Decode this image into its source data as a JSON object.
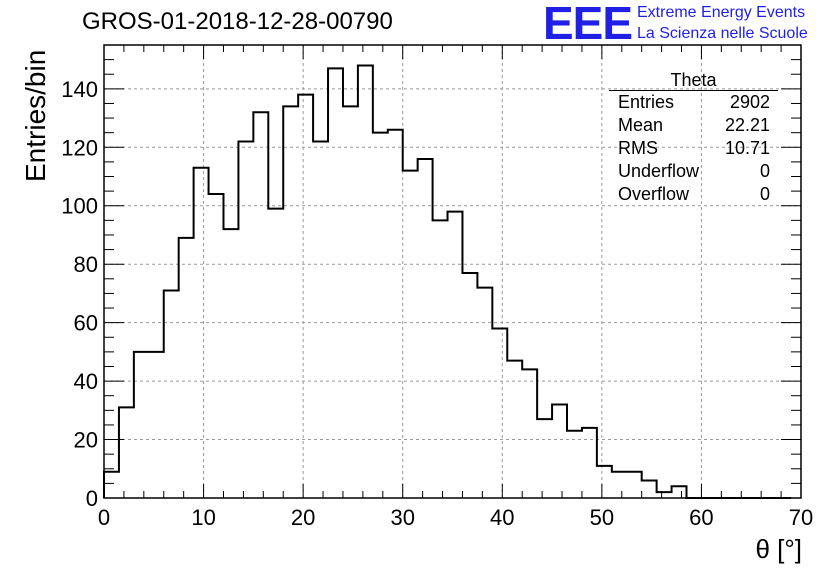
{
  "title": "GROS-01-2018-12-28-00790",
  "logo": {
    "text": "EEE",
    "line1": "Extreme Energy Events",
    "line2": "La Scienza nelle Scuole",
    "color": "#1f1fe6"
  },
  "stats": {
    "title": "Theta",
    "rows": [
      {
        "key": "Entries",
        "value": "2902"
      },
      {
        "key": "Mean",
        "value": "22.21"
      },
      {
        "key": "RMS",
        "value": "10.71"
      },
      {
        "key": "Underflow",
        "value": "0"
      },
      {
        "key": "Overflow",
        "value": "0"
      }
    ]
  },
  "chart_data": {
    "type": "bar",
    "title": "GROS-01-2018-12-28-00790",
    "xlabel": "θ [°]",
    "ylabel": "Entries/bin",
    "xlim": [
      0,
      70
    ],
    "ylim": [
      0,
      155
    ],
    "xticks": [
      0,
      10,
      20,
      30,
      40,
      50,
      60,
      70
    ],
    "yticks": [
      0,
      20,
      40,
      60,
      80,
      100,
      120,
      140
    ],
    "bin_width": 1.5,
    "grid": true,
    "bins_low_edges": [
      0,
      1.5,
      3,
      4.5,
      6,
      7.5,
      9,
      10.5,
      12,
      13.5,
      15,
      16.5,
      18,
      19.5,
      21,
      22.5,
      24,
      25.5,
      27,
      28.5,
      30,
      31.5,
      33,
      34.5,
      36,
      37.5,
      39,
      40.5,
      42,
      43.5,
      45,
      46.5,
      48,
      49.5,
      51,
      52.5,
      54,
      55.5,
      57,
      58.5,
      60,
      61.5,
      63,
      64.5,
      66,
      67.5
    ],
    "values": [
      9,
      31,
      50,
      50,
      71,
      89,
      113,
      104,
      92,
      122,
      132,
      99,
      134,
      138,
      122,
      147,
      134,
      148,
      125,
      126,
      112,
      116,
      95,
      98,
      77,
      72,
      58,
      47,
      44,
      27,
      32,
      23,
      24,
      11,
      9,
      9,
      6,
      2,
      4,
      0,
      0,
      0,
      0,
      0,
      0,
      0
    ]
  }
}
